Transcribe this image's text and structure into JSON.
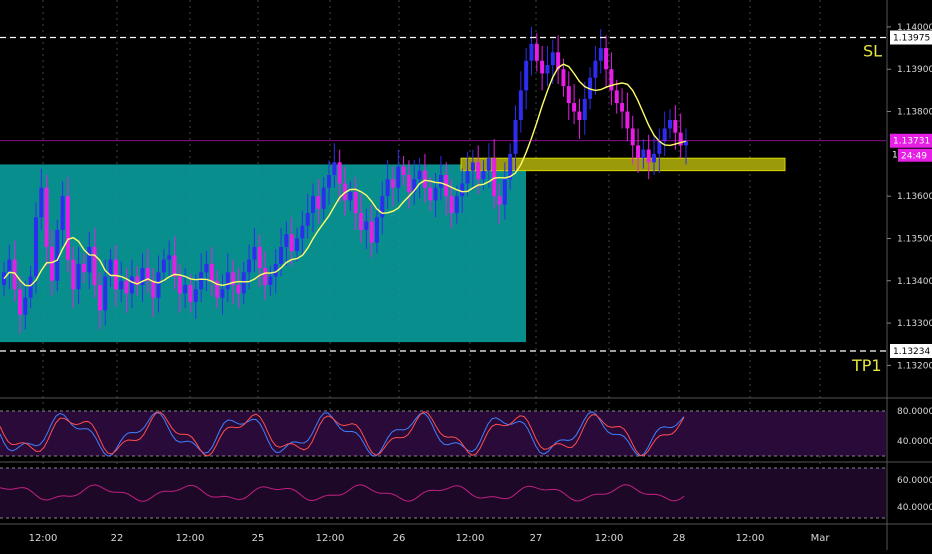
{
  "chart_data": {
    "type": "candlestick",
    "instrument_note": "",
    "price_axis": {
      "range": [
        1.1313,
        1.1404
      ],
      "ticks": [
        "1.14000",
        "1.13900",
        "1.13800",
        "1.13600",
        "1.13500",
        "1.13400",
        "1.13300",
        "1.13200"
      ],
      "tick_values": [
        1.14,
        1.139,
        1.138,
        1.136,
        1.135,
        1.134,
        1.133,
        1.132
      ]
    },
    "time_axis": {
      "labels": [
        "12:00",
        "22",
        "12:00",
        "25",
        "12:00",
        "26",
        "12:00",
        "27",
        "12:00",
        "28",
        "12:00",
        "Mar"
      ]
    },
    "price_tags": {
      "stop_loss": {
        "label": "1.13975",
        "value": 1.13975
      },
      "take_profit": {
        "label": "1.13234",
        "value": 1.13234
      },
      "current": {
        "label": "1.13731",
        "value": 1.13731
      },
      "countdown": "24:49",
      "hidden_marker": "1"
    },
    "line_labels": {
      "stop_loss": "SL",
      "take_profit": "TP1"
    },
    "zones": {
      "range_box": {
        "top": 1.13675,
        "bottom": 1.13255
      },
      "support_zone": {
        "top": 1.13685,
        "bottom": 1.13665
      }
    },
    "candles": [
      1.1342,
      1.1345,
      1.1338,
      1.1332,
      1.1336,
      1.1341,
      1.1355,
      1.1362,
      1.1348,
      1.134,
      1.1352,
      1.136,
      1.1345,
      1.1338,
      1.1344,
      1.1342,
      1.1348,
      1.1339,
      1.1333,
      1.1341,
      1.1345,
      1.1338,
      1.134,
      1.1337,
      1.1341,
      1.1339,
      1.1343,
      1.134,
      1.1336,
      1.1342,
      1.1345,
      1.1346,
      1.1341,
      1.1337,
      1.1339,
      1.1335,
      1.1338,
      1.1342,
      1.1344,
      1.134,
      1.1336,
      1.1338,
      1.1342,
      1.1339,
      1.1337,
      1.1342,
      1.1345,
      1.1348,
      1.1343,
      1.1339,
      1.1341,
      1.1344,
      1.1348,
      1.1351,
      1.1347,
      1.135,
      1.1353,
      1.1356,
      1.136,
      1.1357,
      1.1362,
      1.1365,
      1.1368,
      1.1363,
      1.1359,
      1.1361,
      1.1356,
      1.1352,
      1.1354,
      1.1349,
      1.1355,
      1.136,
      1.1364,
      1.1362,
      1.1367,
      1.1365,
      1.1361,
      1.1364,
      1.1366,
      1.1362,
      1.1359,
      1.1362,
      1.1365,
      1.136,
      1.1356,
      1.136,
      1.1363,
      1.1366,
      1.1368,
      1.1364,
      1.1366,
      1.1369,
      1.136,
      1.1358,
      1.1364,
      1.137,
      1.1378,
      1.1385,
      1.1392,
      1.1396,
      1.1392,
      1.1389,
      1.1391,
      1.1394,
      1.139,
      1.1386,
      1.1382,
      1.138,
      1.1378,
      1.1383,
      1.1388,
      1.1392,
      1.1395,
      1.139,
      1.1385,
      1.1382,
      1.138,
      1.1376,
      1.1372,
      1.1369,
      1.1371,
      1.1368,
      1.137,
      1.1373,
      1.1376,
      1.1378,
      1.1375,
      1.1372,
      1.1373
    ]
  },
  "colors": {
    "bull": "#2d2df0",
    "bear": "#e61ee6",
    "ma": "#ffff66",
    "range_box": "#0a9a9a",
    "support_zone": "#9a9a0a",
    "support_border": "#d6d600",
    "dashed": "#ffffff",
    "label": "#e6e63c",
    "current_tag": "#e61ee6",
    "osc1_fill": "#2a0a38",
    "osc2_fill": "#1e0828",
    "k_line": "#3f7fff",
    "d_line": "#ff4d4d",
    "rsi_line": "#c02080",
    "axis_text": "#d8d8d8",
    "grid": "#444444"
  },
  "indicators": {
    "stochastic": {
      "levels": [
        "80.0000",
        "40.0000"
      ]
    },
    "rsi": {
      "levels": [
        "60.0000",
        "40.0000"
      ]
    }
  }
}
